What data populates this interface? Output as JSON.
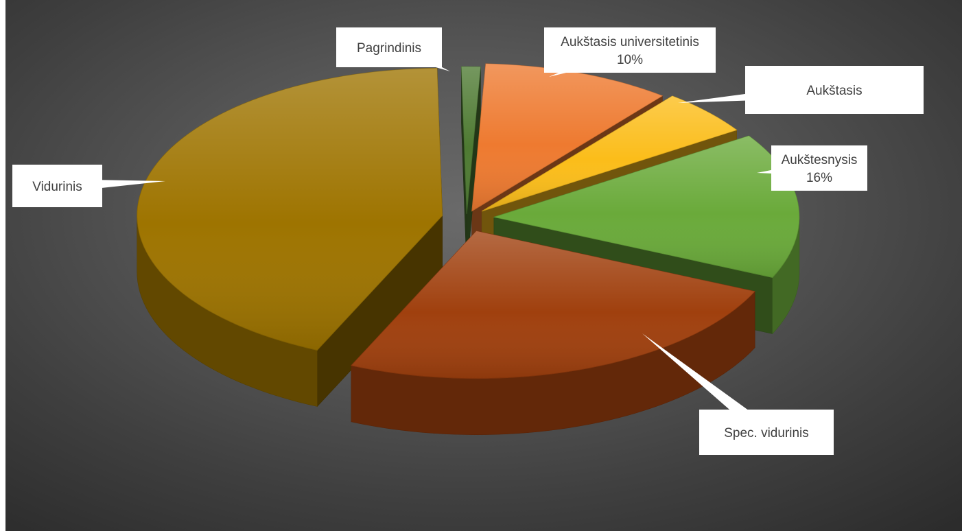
{
  "chart_data": {
    "type": "pie",
    "style": "3d-exploded",
    "categories": [
      "Pagrindinis",
      "Aukštasis universitetinis",
      "Aukštasis",
      "Aukštesnysis",
      "Spec. vidurinis",
      "Vidurinis"
    ],
    "values": [
      1,
      10,
      5,
      16,
      25,
      43
    ],
    "data_labels": [
      {
        "category": "Pagrindinis",
        "text": "",
        "lines": [
          "Pagrindinis"
        ]
      },
      {
        "category": "Aukštasis universitetinis",
        "text": "10%",
        "lines": [
          "Aukštasis universitetinis",
          "10%"
        ]
      },
      {
        "category": "Aukštasis",
        "text": "",
        "lines": [
          "Aukštasis"
        ]
      },
      {
        "category": "Aukštesnysis",
        "text": "16%",
        "lines": [
          "Aukštesnysis",
          "16%"
        ]
      },
      {
        "category": "Spec. vidurinis",
        "text": "",
        "lines": [
          "Spec. vidurinis"
        ]
      },
      {
        "category": "Vidurinis",
        "text": "",
        "lines": [
          "Vidurinis"
        ]
      }
    ],
    "colors": {
      "Pagrindinis": "#4e7a32",
      "Aukštasis universitetinis": "#ee7a30",
      "Aukštasis": "#fbbd1a",
      "Aukštesnysis": "#6aaa3a",
      "Spec. vidurinis": "#a0400e",
      "Vidurinis": "#9e7400"
    },
    "background": "#4a4a4a",
    "legend": "none"
  }
}
